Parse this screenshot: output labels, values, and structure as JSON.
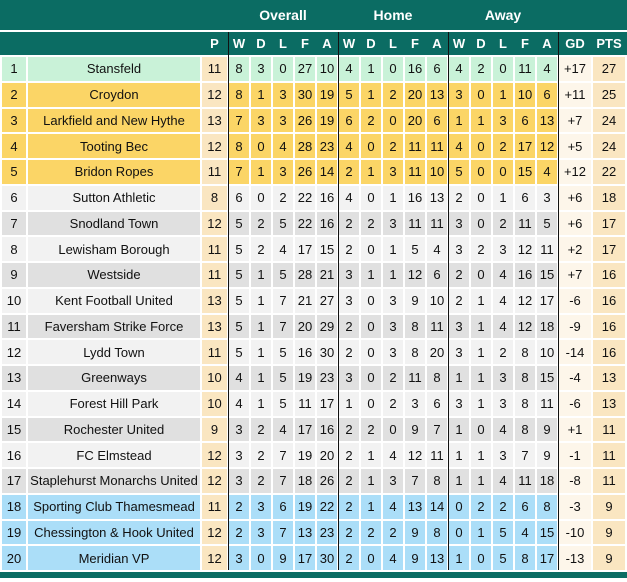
{
  "header": {
    "groups": [
      "Overall",
      "Home",
      "Away"
    ],
    "columns": [
      "P",
      "W",
      "D",
      "L",
      "F",
      "A",
      "W",
      "D",
      "L",
      "F",
      "A",
      "W",
      "D",
      "L",
      "F",
      "A",
      "GD",
      "PTS"
    ]
  },
  "table": {
    "rows": [
      {
        "pos": "1",
        "team": "Stansfeld",
        "zone": "green",
        "p": "11",
        "overall": [
          "8",
          "3",
          "0",
          "27",
          "10"
        ],
        "home": [
          "4",
          "1",
          "0",
          "16",
          "6"
        ],
        "away": [
          "4",
          "2",
          "0",
          "11",
          "4"
        ],
        "gd": "+17",
        "pts": "27"
      },
      {
        "pos": "2",
        "team": "Croydon",
        "zone": "yellow",
        "p": "12",
        "overall": [
          "8",
          "1",
          "3",
          "30",
          "19"
        ],
        "home": [
          "5",
          "1",
          "2",
          "20",
          "13"
        ],
        "away": [
          "3",
          "0",
          "1",
          "10",
          "6"
        ],
        "gd": "+11",
        "pts": "25"
      },
      {
        "pos": "3",
        "team": "Larkfield and New Hythe",
        "zone": "yellow",
        "p": "13",
        "overall": [
          "7",
          "3",
          "3",
          "26",
          "19"
        ],
        "home": [
          "6",
          "2",
          "0",
          "20",
          "6"
        ],
        "away": [
          "1",
          "1",
          "3",
          "6",
          "13"
        ],
        "gd": "+7",
        "pts": "24"
      },
      {
        "pos": "4",
        "team": "Tooting Bec",
        "zone": "yellow",
        "p": "12",
        "overall": [
          "8",
          "0",
          "4",
          "28",
          "23"
        ],
        "home": [
          "4",
          "0",
          "2",
          "11",
          "11"
        ],
        "away": [
          "4",
          "0",
          "2",
          "17",
          "12"
        ],
        "gd": "+5",
        "pts": "24"
      },
      {
        "pos": "5",
        "team": "Bridon Ropes",
        "zone": "yellow",
        "p": "11",
        "overall": [
          "7",
          "1",
          "3",
          "26",
          "14"
        ],
        "home": [
          "2",
          "1",
          "3",
          "11",
          "10"
        ],
        "away": [
          "5",
          "0",
          "0",
          "15",
          "4"
        ],
        "gd": "+12",
        "pts": "22"
      },
      {
        "pos": "6",
        "team": "Sutton Athletic",
        "zone": "light",
        "p": "8",
        "overall": [
          "6",
          "0",
          "2",
          "22",
          "16"
        ],
        "home": [
          "4",
          "0",
          "1",
          "16",
          "13"
        ],
        "away": [
          "2",
          "0",
          "1",
          "6",
          "3"
        ],
        "gd": "+6",
        "pts": "18"
      },
      {
        "pos": "7",
        "team": "Snodland Town",
        "zone": "dark",
        "p": "12",
        "overall": [
          "5",
          "2",
          "5",
          "22",
          "16"
        ],
        "home": [
          "2",
          "2",
          "3",
          "11",
          "11"
        ],
        "away": [
          "3",
          "0",
          "2",
          "11",
          "5"
        ],
        "gd": "+6",
        "pts": "17"
      },
      {
        "pos": "8",
        "team": "Lewisham Borough",
        "zone": "light",
        "p": "11",
        "overall": [
          "5",
          "2",
          "4",
          "17",
          "15"
        ],
        "home": [
          "2",
          "0",
          "1",
          "5",
          "4"
        ],
        "away": [
          "3",
          "2",
          "3",
          "12",
          "11"
        ],
        "gd": "+2",
        "pts": "17"
      },
      {
        "pos": "9",
        "team": "Westside",
        "zone": "dark",
        "p": "11",
        "overall": [
          "5",
          "1",
          "5",
          "28",
          "21"
        ],
        "home": [
          "3",
          "1",
          "1",
          "12",
          "6"
        ],
        "away": [
          "2",
          "0",
          "4",
          "16",
          "15"
        ],
        "gd": "+7",
        "pts": "16"
      },
      {
        "pos": "10",
        "team": "Kent Football United",
        "zone": "light",
        "p": "13",
        "overall": [
          "5",
          "1",
          "7",
          "21",
          "27"
        ],
        "home": [
          "3",
          "0",
          "3",
          "9",
          "10"
        ],
        "away": [
          "2",
          "1",
          "4",
          "12",
          "17"
        ],
        "gd": "-6",
        "pts": "16"
      },
      {
        "pos": "11",
        "team": "Faversham Strike Force",
        "zone": "dark",
        "p": "13",
        "overall": [
          "5",
          "1",
          "7",
          "20",
          "29"
        ],
        "home": [
          "2",
          "0",
          "3",
          "8",
          "11"
        ],
        "away": [
          "3",
          "1",
          "4",
          "12",
          "18"
        ],
        "gd": "-9",
        "pts": "16"
      },
      {
        "pos": "12",
        "team": "Lydd Town",
        "zone": "light",
        "p": "11",
        "overall": [
          "5",
          "1",
          "5",
          "16",
          "30"
        ],
        "home": [
          "2",
          "0",
          "3",
          "8",
          "20"
        ],
        "away": [
          "3",
          "1",
          "2",
          "8",
          "10"
        ],
        "gd": "-14",
        "pts": "16"
      },
      {
        "pos": "13",
        "team": "Greenways",
        "zone": "dark",
        "p": "10",
        "overall": [
          "4",
          "1",
          "5",
          "19",
          "23"
        ],
        "home": [
          "3",
          "0",
          "2",
          "11",
          "8"
        ],
        "away": [
          "1",
          "1",
          "3",
          "8",
          "15"
        ],
        "gd": "-4",
        "pts": "13"
      },
      {
        "pos": "14",
        "team": "Forest Hill Park",
        "zone": "light",
        "p": "10",
        "overall": [
          "4",
          "1",
          "5",
          "11",
          "17"
        ],
        "home": [
          "1",
          "0",
          "2",
          "3",
          "6"
        ],
        "away": [
          "3",
          "1",
          "3",
          "8",
          "11"
        ],
        "gd": "-6",
        "pts": "13"
      },
      {
        "pos": "15",
        "team": "Rochester United",
        "zone": "dark",
        "p": "9",
        "overall": [
          "3",
          "2",
          "4",
          "17",
          "16"
        ],
        "home": [
          "2",
          "2",
          "0",
          "9",
          "7"
        ],
        "away": [
          "1",
          "0",
          "4",
          "8",
          "9"
        ],
        "gd": "+1",
        "pts": "11"
      },
      {
        "pos": "16",
        "team": "FC Elmstead",
        "zone": "light",
        "p": "12",
        "overall": [
          "3",
          "2",
          "7",
          "19",
          "20"
        ],
        "home": [
          "2",
          "1",
          "4",
          "12",
          "11"
        ],
        "away": [
          "1",
          "1",
          "3",
          "7",
          "9"
        ],
        "gd": "-1",
        "pts": "11"
      },
      {
        "pos": "17",
        "team": "Staplehurst Monarchs United",
        "zone": "dark",
        "p": "12",
        "overall": [
          "3",
          "2",
          "7",
          "18",
          "26"
        ],
        "home": [
          "2",
          "1",
          "3",
          "7",
          "8"
        ],
        "away": [
          "1",
          "1",
          "4",
          "11",
          "18"
        ],
        "gd": "-8",
        "pts": "11"
      },
      {
        "pos": "18",
        "team": "Sporting Club Thamesmead",
        "zone": "blue",
        "p": "11",
        "overall": [
          "2",
          "3",
          "6",
          "19",
          "22"
        ],
        "home": [
          "2",
          "1",
          "4",
          "13",
          "14"
        ],
        "away": [
          "0",
          "2",
          "2",
          "6",
          "8"
        ],
        "gd": "-3",
        "pts": "9"
      },
      {
        "pos": "19",
        "team": "Chessington & Hook United",
        "zone": "blue",
        "p": "12",
        "overall": [
          "2",
          "3",
          "7",
          "13",
          "23"
        ],
        "home": [
          "2",
          "2",
          "2",
          "9",
          "8"
        ],
        "away": [
          "0",
          "1",
          "5",
          "4",
          "15"
        ],
        "gd": "-10",
        "pts": "9"
      },
      {
        "pos": "20",
        "team": "Meridian VP",
        "zone": "blue",
        "p": "12",
        "overall": [
          "3",
          "0",
          "9",
          "17",
          "30"
        ],
        "home": [
          "2",
          "0",
          "4",
          "9",
          "13"
        ],
        "away": [
          "1",
          "0",
          "5",
          "8",
          "17"
        ],
        "gd": "-13",
        "pts": "9"
      }
    ]
  },
  "colors": {
    "header_teal": "#0B6C63",
    "zone_green": "#C9F2D8",
    "zone_yellow": "#FBD566",
    "zone_light": "#F2F2F2",
    "zone_dark": "#E0E0E0",
    "zone_blue": "#ABDEF8",
    "played_column_cream": "#FAE6C1",
    "points_column_cream": "#FAE6C1",
    "goal_diff_column_cream": "#FDF6EA",
    "divider_black": "#111111",
    "gridline_white": "#FFFFFF"
  }
}
